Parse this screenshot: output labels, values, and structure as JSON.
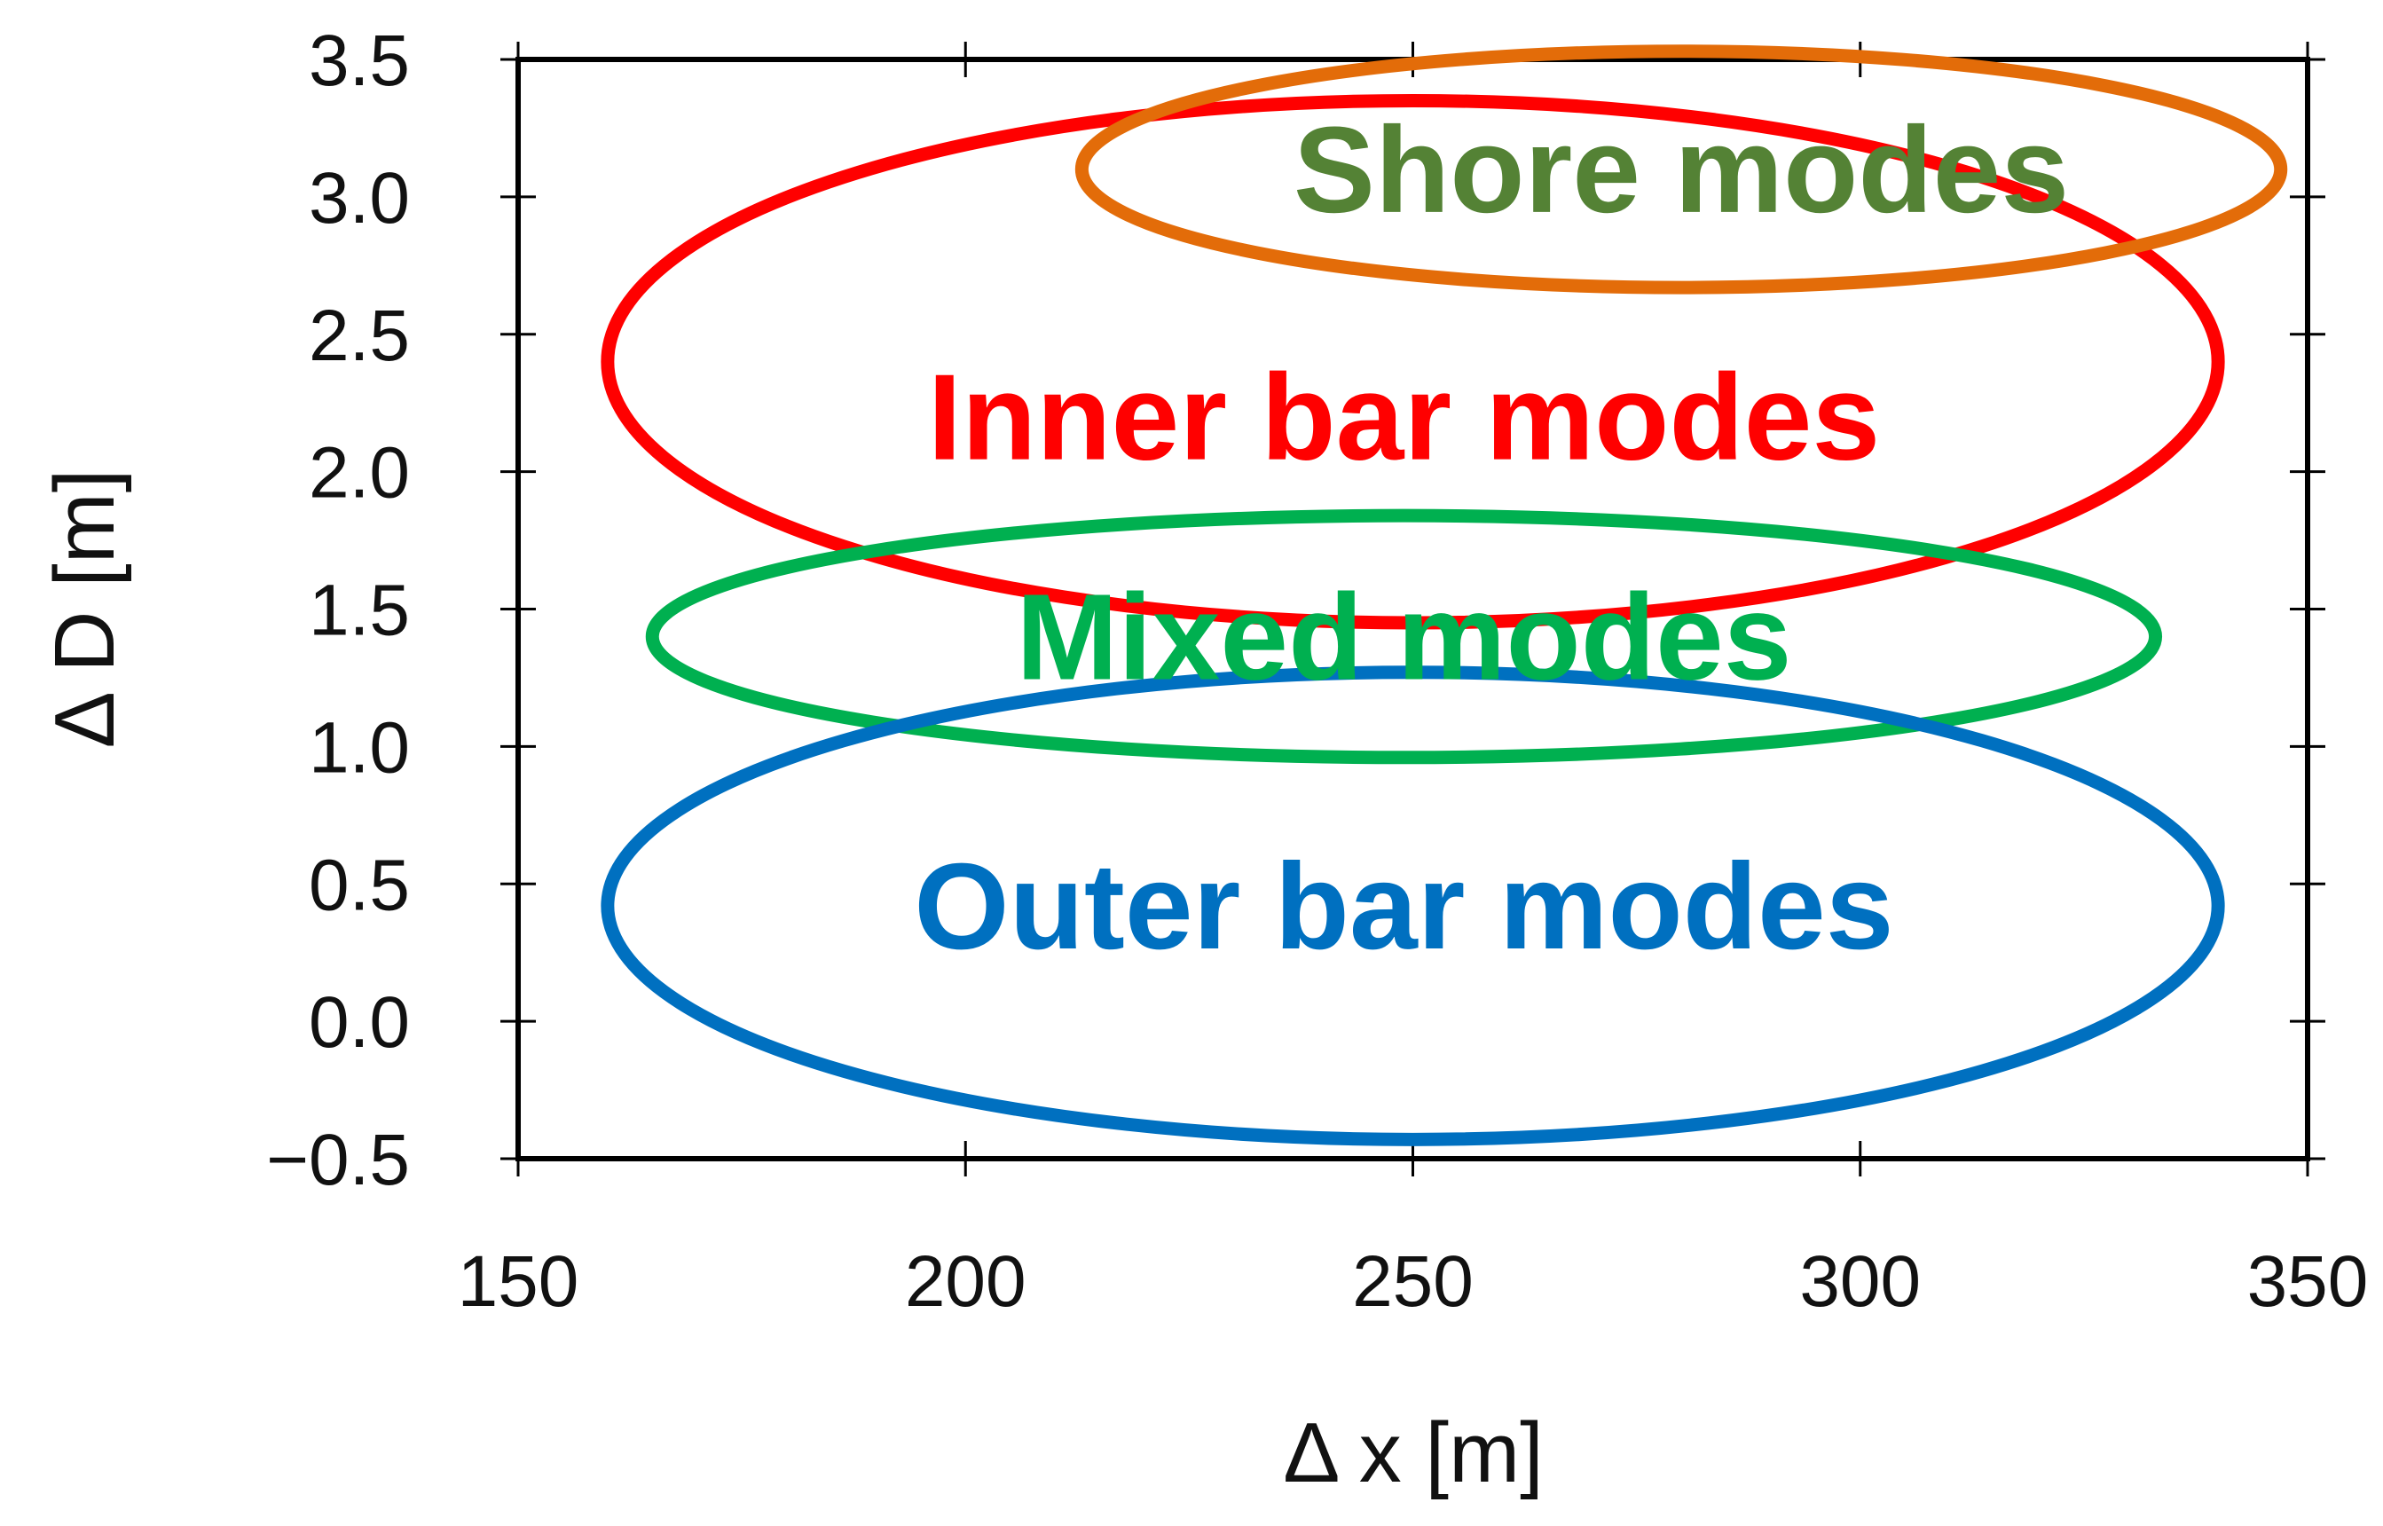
{
  "chart_data": {
    "type": "scatter",
    "title": "",
    "xlabel": "Δ x [m]",
    "ylabel": "Δ D [m]",
    "xlim": [
      150,
      350
    ],
    "ylim": [
      -0.5,
      3.5
    ],
    "x_ticks": [
      150,
      200,
      250,
      300,
      350
    ],
    "x_tick_labels": [
      "150",
      "200",
      "250",
      "300",
      "350"
    ],
    "y_ticks": [
      -0.5,
      0.0,
      0.5,
      1.0,
      1.5,
      2.0,
      2.5,
      3.0,
      3.5
    ],
    "y_tick_labels": [
      "−0.5",
      "0.0",
      "0.5",
      "1.0",
      "1.5",
      "2.0",
      "2.5",
      "3.0",
      "3.5"
    ],
    "grid": false,
    "legend": "none",
    "regions": [
      {
        "label": "Inner bar modes",
        "shape": "ellipse",
        "center": {
          "x": 250,
          "y": 2.4
        },
        "half_width": 90,
        "half_height": 0.95,
        "color": "#ff0000",
        "label_position": {
          "x": 249,
          "y": 2.2
        }
      },
      {
        "label": "Shore modes",
        "shape": "ellipse",
        "center": {
          "x": 280,
          "y": 3.1
        },
        "half_width": 67,
        "half_height": 0.43,
        "color": "#e36c09",
        "text_color": "#548235",
        "label_position": {
          "x": 280,
          "y": 3.1
        }
      },
      {
        "label": "Mixed modes",
        "shape": "ellipse",
        "center": {
          "x": 249,
          "y": 1.4
        },
        "half_width": 84,
        "half_height": 0.44,
        "color": "#00b050",
        "label_position": {
          "x": 249,
          "y": 1.4
        }
      },
      {
        "label": "Outer bar modes",
        "shape": "ellipse",
        "center": {
          "x": 250,
          "y": 0.42
        },
        "half_width": 90,
        "half_height": 0.85,
        "color": "#0070c0",
        "label_position": {
          "x": 249,
          "y": 0.42
        }
      }
    ]
  }
}
